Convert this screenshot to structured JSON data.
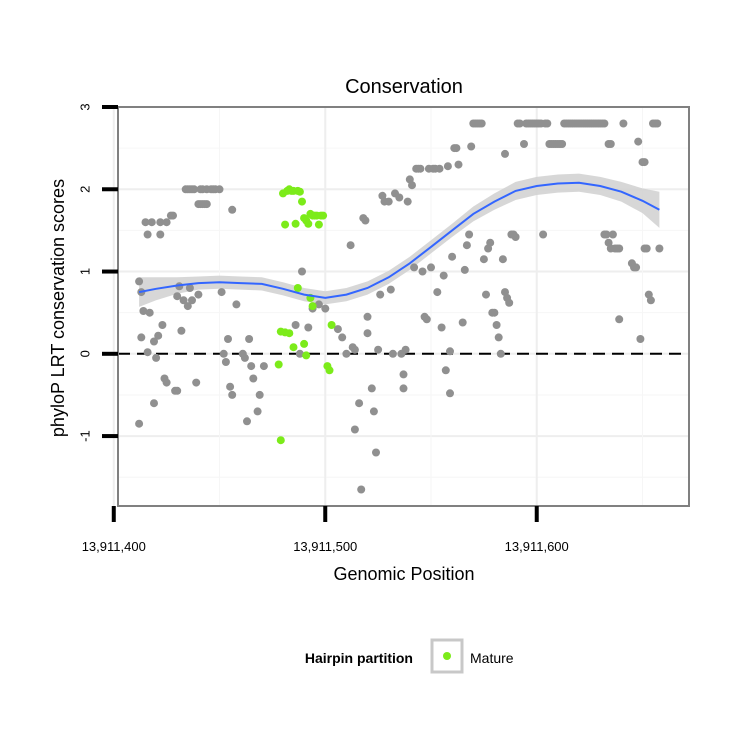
{
  "chart_data": {
    "type": "scatter",
    "title": "Conservation",
    "xlabel": "Genomic Position",
    "ylabel": "phyloP LRT conservation scores",
    "xlim": [
      13911402,
      13911672
    ],
    "ylim": [
      -1.85,
      3.0
    ],
    "x_ticks": [
      13911400,
      13911500,
      13911600
    ],
    "x_tick_labels": [
      "13,911,400",
      "13,911,500",
      "13,911,600"
    ],
    "y_ticks": [
      -1,
      0,
      1,
      2,
      3
    ],
    "y_tick_labels": [
      "-1",
      "0",
      "1",
      "2",
      "3"
    ],
    "grid": true,
    "reference_line": {
      "y": 0,
      "style": "dashed"
    },
    "colors": {
      "other_points": "#909090",
      "mature_points": "#7CEB1A",
      "smooth_line": "#3366FF",
      "ribbon": "#D0D0D0"
    },
    "legend": {
      "title": "Hairpin partition",
      "position": "bottom",
      "entries": [
        {
          "label": "Mature",
          "color": "#7CEB1A"
        }
      ]
    },
    "series": [
      {
        "name": "",
        "points": [
          [
            13911412,
            0.88
          ],
          [
            13911413,
            0.75
          ],
          [
            13911412,
            -0.85
          ],
          [
            13911413,
            0.2
          ],
          [
            13911414,
            0.52
          ],
          [
            13911415,
            1.6
          ],
          [
            13911416,
            1.45
          ],
          [
            13911416,
            0.02
          ],
          [
            13911417,
            0.5
          ],
          [
            13911418,
            1.6
          ],
          [
            13911419,
            0.15
          ],
          [
            13911419,
            -0.6
          ],
          [
            13911420,
            -0.05
          ],
          [
            13911421,
            0.22
          ],
          [
            13911422,
            1.6
          ],
          [
            13911422,
            1.45
          ],
          [
            13911423,
            0.35
          ],
          [
            13911424,
            -0.3
          ],
          [
            13911425,
            -0.35
          ],
          [
            13911425,
            1.6
          ],
          [
            13911427,
            1.68
          ],
          [
            13911428,
            1.68
          ],
          [
            13911429,
            -0.45
          ],
          [
            13911430,
            0.7
          ],
          [
            13911430,
            -0.45
          ],
          [
            13911431,
            0.82
          ],
          [
            13911432,
            0.28
          ],
          [
            13911433,
            0.65
          ],
          [
            13911435,
            0.58
          ],
          [
            13911436,
            0.8
          ],
          [
            13911437,
            0.65
          ],
          [
            13911439,
            -0.35
          ],
          [
            13911440,
            0.72
          ],
          [
            13911434,
            2.0
          ],
          [
            13911435,
            2.0
          ],
          [
            13911436,
            2.0
          ],
          [
            13911437,
            2.0
          ],
          [
            13911438,
            2.0
          ],
          [
            13911440,
            1.82
          ],
          [
            13911441,
            1.82
          ],
          [
            13911442,
            1.82
          ],
          [
            13911443,
            1.82
          ],
          [
            13911444,
            1.82
          ],
          [
            13911441,
            2.0
          ],
          [
            13911442,
            2.0
          ],
          [
            13911444,
            2.0
          ],
          [
            13911446,
            2.0
          ],
          [
            13911447,
            2.0
          ],
          [
            13911448,
            2.0
          ],
          [
            13911450,
            2.0
          ],
          [
            13911451,
            0.75
          ],
          [
            13911452,
            0.0
          ],
          [
            13911453,
            -0.1
          ],
          [
            13911454,
            0.18
          ],
          [
            13911455,
            -0.4
          ],
          [
            13911456,
            -0.5
          ],
          [
            13911456,
            1.75
          ],
          [
            13911458,
            0.6
          ],
          [
            13911461,
            0.0
          ],
          [
            13911462,
            -0.05
          ],
          [
            13911463,
            -0.82
          ],
          [
            13911464,
            0.18
          ],
          [
            13911465,
            -0.15
          ],
          [
            13911466,
            -0.3
          ],
          [
            13911468,
            -0.7
          ],
          [
            13911469,
            -0.5
          ],
          [
            13911471,
            -0.15
          ],
          [
            13911486,
            0.35
          ],
          [
            13911488,
            0.0
          ],
          [
            13911489,
            1.0
          ],
          [
            13911492,
            0.32
          ],
          [
            13911494,
            0.55
          ],
          [
            13911497,
            0.6
          ],
          [
            13911500,
            0.55
          ],
          [
            13911506,
            0.3
          ],
          [
            13911508,
            0.2
          ],
          [
            13911510,
            0.0
          ],
          [
            13911512,
            1.32
          ],
          [
            13911513,
            0.08
          ],
          [
            13911514,
            0.05
          ],
          [
            13911514,
            -0.92
          ],
          [
            13911516,
            -0.6
          ],
          [
            13911517,
            -1.65
          ],
          [
            13911518,
            1.65
          ],
          [
            13911519,
            1.62
          ],
          [
            13911520,
            0.25
          ],
          [
            13911520,
            0.45
          ],
          [
            13911522,
            -0.42
          ],
          [
            13911523,
            -0.7
          ],
          [
            13911524,
            -1.2
          ],
          [
            13911525,
            0.05
          ],
          [
            13911526,
            0.72
          ],
          [
            13911527,
            1.92
          ],
          [
            13911528,
            1.85
          ],
          [
            13911530,
            1.85
          ],
          [
            13911531,
            0.78
          ],
          [
            13911532,
            0.0
          ],
          [
            13911533,
            1.95
          ],
          [
            13911535,
            1.9
          ],
          [
            13911536,
            0.0
          ],
          [
            13911537,
            -0.25
          ],
          [
            13911537,
            -0.42
          ],
          [
            13911538,
            0.05
          ],
          [
            13911539,
            1.85
          ],
          [
            13911540,
            2.12
          ],
          [
            13911541,
            2.05
          ],
          [
            13911542,
            1.05
          ],
          [
            13911543,
            2.25
          ],
          [
            13911544,
            2.25
          ],
          [
            13911545,
            2.25
          ],
          [
            13911546,
            1.0
          ],
          [
            13911547,
            0.45
          ],
          [
            13911548,
            0.42
          ],
          [
            13911549,
            2.25
          ],
          [
            13911550,
            1.05
          ],
          [
            13911551,
            2.25
          ],
          [
            13911552,
            2.25
          ],
          [
            13911553,
            0.75
          ],
          [
            13911554,
            2.25
          ],
          [
            13911555,
            0.32
          ],
          [
            13911556,
            0.95
          ],
          [
            13911557,
            -0.2
          ],
          [
            13911558,
            2.28
          ],
          [
            13911559,
            -0.48
          ],
          [
            13911559,
            0.03
          ],
          [
            13911560,
            1.18
          ],
          [
            13911561,
            2.5
          ],
          [
            13911562,
            2.5
          ],
          [
            13911563,
            2.3
          ],
          [
            13911565,
            0.38
          ],
          [
            13911566,
            1.02
          ],
          [
            13911567,
            1.32
          ],
          [
            13911568,
            1.45
          ],
          [
            13911569,
            2.52
          ],
          [
            13911570,
            2.8
          ],
          [
            13911571,
            2.8
          ],
          [
            13911572,
            2.8
          ],
          [
            13911573,
            2.8
          ],
          [
            13911574,
            2.8
          ],
          [
            13911575,
            1.15
          ],
          [
            13911576,
            0.72
          ],
          [
            13911577,
            1.28
          ],
          [
            13911578,
            1.35
          ],
          [
            13911579,
            0.5
          ],
          [
            13911580,
            0.5
          ],
          [
            13911581,
            0.35
          ],
          [
            13911582,
            0.2
          ],
          [
            13911583,
            0.0
          ],
          [
            13911584,
            1.15
          ],
          [
            13911585,
            0.75
          ],
          [
            13911585,
            2.43
          ],
          [
            13911586,
            0.68
          ],
          [
            13911587,
            0.62
          ],
          [
            13911588,
            1.45
          ],
          [
            13911589,
            1.45
          ],
          [
            13911590,
            1.42
          ],
          [
            13911591,
            2.8
          ],
          [
            13911592,
            2.8
          ],
          [
            13911594,
            2.55
          ],
          [
            13911595,
            2.8
          ],
          [
            13911596,
            2.8
          ],
          [
            13911597,
            2.8
          ],
          [
            13911598,
            2.8
          ],
          [
            13911599,
            2.8
          ],
          [
            13911600,
            2.8
          ],
          [
            13911601,
            2.8
          ],
          [
            13911602,
            2.8
          ],
          [
            13911603,
            1.45
          ],
          [
            13911604,
            2.8
          ],
          [
            13911605,
            2.8
          ],
          [
            13911606,
            2.55
          ],
          [
            13911607,
            2.55
          ],
          [
            13911608,
            2.55
          ],
          [
            13911609,
            2.55
          ],
          [
            13911610,
            2.55
          ],
          [
            13911611,
            2.55
          ],
          [
            13911612,
            2.55
          ],
          [
            13911613,
            2.8
          ],
          [
            13911614,
            2.8
          ],
          [
            13911615,
            2.8
          ],
          [
            13911616,
            2.8
          ],
          [
            13911617,
            2.8
          ],
          [
            13911618,
            2.8
          ],
          [
            13911619,
            2.8
          ],
          [
            13911620,
            2.8
          ],
          [
            13911621,
            2.8
          ],
          [
            13911622,
            2.8
          ],
          [
            13911623,
            2.8
          ],
          [
            13911624,
            2.8
          ],
          [
            13911625,
            2.8
          ],
          [
            13911626,
            2.8
          ],
          [
            13911627,
            2.8
          ],
          [
            13911628,
            2.8
          ],
          [
            13911629,
            2.8
          ],
          [
            13911630,
            2.8
          ],
          [
            13911631,
            2.8
          ],
          [
            13911632,
            2.8
          ],
          [
            13911634,
            2.55
          ],
          [
            13911635,
            2.55
          ],
          [
            13911632,
            1.45
          ],
          [
            13911633,
            1.45
          ],
          [
            13911634,
            1.35
          ],
          [
            13911635,
            1.28
          ],
          [
            13911636,
            1.45
          ],
          [
            13911637,
            1.28
          ],
          [
            13911638,
            1.28
          ],
          [
            13911639,
            1.28
          ],
          [
            13911639,
            0.42
          ],
          [
            13911641,
            2.8
          ],
          [
            13911645,
            1.1
          ],
          [
            13911646,
            1.05
          ],
          [
            13911647,
            1.05
          ],
          [
            13911648,
            2.58
          ],
          [
            13911649,
            0.18
          ],
          [
            13911650,
            2.33
          ],
          [
            13911651,
            2.33
          ],
          [
            13911651,
            1.28
          ],
          [
            13911652,
            1.28
          ],
          [
            13911653,
            0.72
          ],
          [
            13911654,
            0.65
          ],
          [
            13911655,
            2.8
          ],
          [
            13911656,
            2.8
          ],
          [
            13911657,
            2.8
          ],
          [
            13911658,
            1.28
          ]
        ]
      },
      {
        "name": "Mature",
        "points": [
          [
            13911480,
            1.95
          ],
          [
            13911481,
            1.57
          ],
          [
            13911482,
            1.98
          ],
          [
            13911483,
            2.0
          ],
          [
            13911484,
            1.98
          ],
          [
            13911485,
            1.98
          ],
          [
            13911486,
            1.58
          ],
          [
            13911487,
            1.98
          ],
          [
            13911488,
            1.97
          ],
          [
            13911489,
            1.85
          ],
          [
            13911490,
            1.65
          ],
          [
            13911491,
            1.62
          ],
          [
            13911492,
            1.58
          ],
          [
            13911493,
            1.7
          ],
          [
            13911494,
            1.68
          ],
          [
            13911495,
            1.68
          ],
          [
            13911496,
            1.68
          ],
          [
            13911497,
            1.57
          ],
          [
            13911498,
            1.68
          ],
          [
            13911499,
            1.68
          ],
          [
            13911478,
            -0.13
          ],
          [
            13911479,
            0.27
          ],
          [
            13911479,
            -1.05
          ],
          [
            13911481,
            0.26
          ],
          [
            13911483,
            0.25
          ],
          [
            13911485,
            0.08
          ],
          [
            13911487,
            0.8
          ],
          [
            13911490,
            0.12
          ],
          [
            13911491,
            -0.02
          ],
          [
            13911493,
            0.68
          ],
          [
            13911494,
            0.58
          ],
          [
            13911501,
            -0.15
          ],
          [
            13911502,
            -0.2
          ],
          [
            13911503,
            0.35
          ]
        ]
      }
    ],
    "smooth": {
      "x": [
        13911412,
        13911420,
        13911430,
        13911440,
        13911450,
        13911460,
        13911470,
        13911480,
        13911490,
        13911500,
        13911510,
        13911520,
        13911530,
        13911540,
        13911550,
        13911560,
        13911570,
        13911580,
        13911590,
        13911600,
        13911610,
        13911620,
        13911630,
        13911640,
        13911650,
        13911658
      ],
      "y": [
        0.75,
        0.79,
        0.83,
        0.86,
        0.87,
        0.86,
        0.85,
        0.79,
        0.72,
        0.68,
        0.72,
        0.8,
        0.93,
        1.1,
        1.3,
        1.5,
        1.7,
        1.85,
        1.98,
        2.04,
        2.07,
        2.08,
        2.04,
        1.97,
        1.86,
        1.75
      ],
      "se": [
        0.18,
        0.14,
        0.1,
        0.08,
        0.08,
        0.08,
        0.08,
        0.08,
        0.08,
        0.08,
        0.08,
        0.08,
        0.08,
        0.08,
        0.08,
        0.08,
        0.09,
        0.1,
        0.11,
        0.11,
        0.11,
        0.11,
        0.11,
        0.12,
        0.15,
        0.22
      ]
    }
  }
}
